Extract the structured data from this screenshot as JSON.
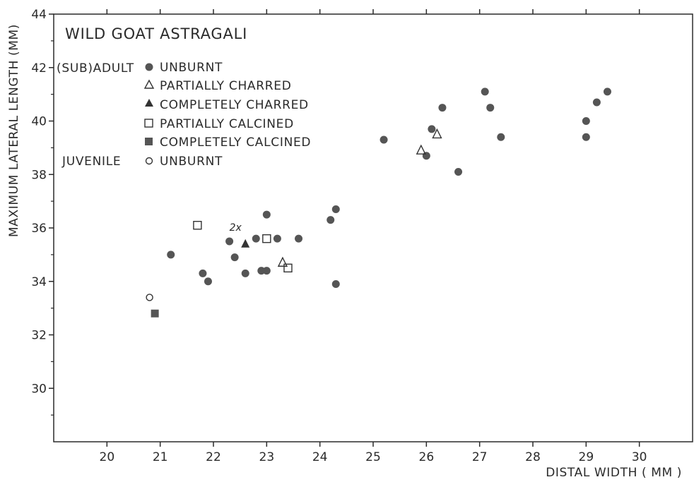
{
  "chart_data": {
    "type": "scatter",
    "title": "WILD GOAT ASTRAGALI",
    "xlabel": "DISTAL WIDTH ( MM )",
    "ylabel": "MAXIMUM LATERAL LENGTH (MM)",
    "xlim": [
      19,
      31
    ],
    "ylim": [
      28,
      44
    ],
    "x_ticks": [
      20,
      21,
      22,
      23,
      24,
      25,
      26,
      27,
      28,
      29,
      30
    ],
    "y_ticks": [
      30,
      32,
      34,
      36,
      38,
      40,
      42,
      44
    ],
    "grid": false,
    "legend_position": "top-left",
    "legend": [
      {
        "group": "(SUB)ADULT",
        "label": "UNBURNT",
        "marker": "filled-circle"
      },
      {
        "group": "",
        "label": "PARTIALLY CHARRED",
        "marker": "open-triangle"
      },
      {
        "group": "",
        "label": "COMPLETELY CHARRED",
        "marker": "filled-triangle"
      },
      {
        "group": "",
        "label": "PARTIALLY CALCINED",
        "marker": "open-square"
      },
      {
        "group": "",
        "label": "COMPLETELY CALCINED",
        "marker": "filled-square"
      },
      {
        "group": "JUVENILE",
        "label": "UNBURNT",
        "marker": "open-circle"
      }
    ],
    "annotations": [
      {
        "text": "2x",
        "x": 22.3,
        "y": 35.9
      }
    ],
    "series": [
      {
        "name": "(SUB)ADULT UNBURNT",
        "marker": "filled-circle",
        "points": [
          [
            21.2,
            35.0
          ],
          [
            21.8,
            34.3
          ],
          [
            21.9,
            34.0
          ],
          [
            22.3,
            35.5
          ],
          [
            22.4,
            34.9
          ],
          [
            22.6,
            34.3
          ],
          [
            22.8,
            35.6
          ],
          [
            22.9,
            34.4
          ],
          [
            23.0,
            34.4
          ],
          [
            23.0,
            36.5
          ],
          [
            23.2,
            35.6
          ],
          [
            23.6,
            35.6
          ],
          [
            24.2,
            36.3
          ],
          [
            24.3,
            36.7
          ],
          [
            24.3,
            33.9
          ],
          [
            25.2,
            39.3
          ],
          [
            26.0,
            38.7
          ],
          [
            26.1,
            39.7
          ],
          [
            26.3,
            40.5
          ],
          [
            26.6,
            38.1
          ],
          [
            27.1,
            41.1
          ],
          [
            27.2,
            40.5
          ],
          [
            27.4,
            39.4
          ],
          [
            29.0,
            40.0
          ],
          [
            29.0,
            39.4
          ],
          [
            29.2,
            40.7
          ],
          [
            29.4,
            41.1
          ]
        ]
      },
      {
        "name": "PARTIALLY CHARRED",
        "marker": "open-triangle",
        "points": [
          [
            23.3,
            34.7
          ],
          [
            25.9,
            38.9
          ],
          [
            26.2,
            39.5
          ]
        ]
      },
      {
        "name": "COMPLETELY CHARRED",
        "marker": "filled-triangle",
        "points": [
          [
            22.6,
            35.4
          ]
        ]
      },
      {
        "name": "PARTIALLY CALCINED",
        "marker": "open-square",
        "points": [
          [
            21.7,
            36.1
          ],
          [
            23.0,
            35.6
          ],
          [
            23.4,
            34.5
          ]
        ]
      },
      {
        "name": "COMPLETELY CALCINED",
        "marker": "filled-square",
        "points": [
          [
            20.9,
            32.8
          ]
        ]
      },
      {
        "name": "JUVENILE UNBURNT",
        "marker": "open-circle",
        "points": [
          [
            20.8,
            33.4
          ]
        ]
      }
    ]
  }
}
